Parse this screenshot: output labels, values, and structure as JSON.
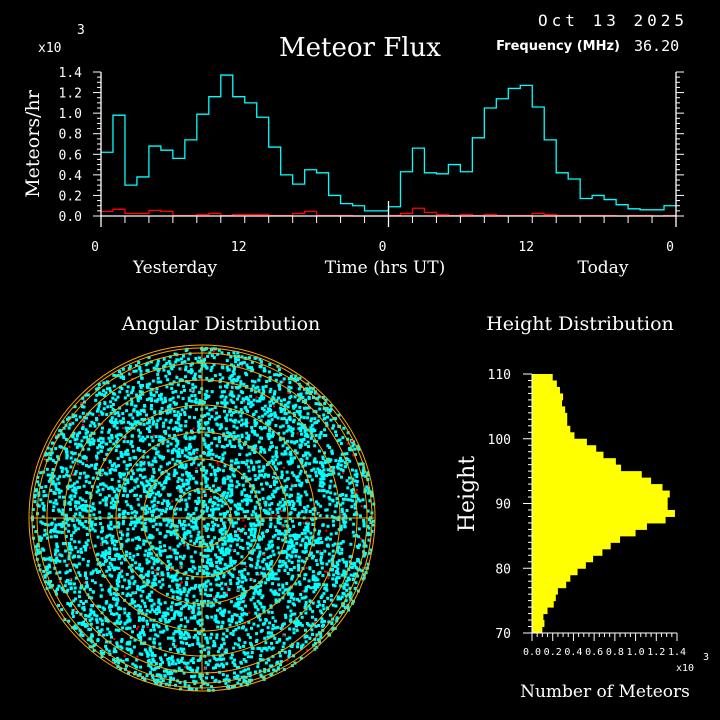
{
  "header": {
    "title": "Meteor Flux",
    "date": "Oct 13 2025",
    "frequency_label": "Frequency (MHz)",
    "frequency_value": "36.20"
  },
  "colors": {
    "background": "#000000",
    "total_series": "#00ffff",
    "secondary_series": "#ff0000",
    "axes": "#ffffff",
    "grid_rings": "#ffa500",
    "height_bars": "#ffff00"
  },
  "chart_data": [
    {
      "type": "line",
      "title": "Meteor Flux",
      "xlabel": "Time (hrs UT)",
      "ylabel": "Meteors/hr",
      "y_multiplier": "x10",
      "y_multiplier_exp": "3",
      "xlim": [
        0,
        48
      ],
      "ylim": [
        0,
        1.4
      ],
      "x_tick_labels": [
        "0",
        "12",
        "0",
        "12",
        "0"
      ],
      "x_tick_values": [
        0,
        12,
        24,
        36,
        48
      ],
      "y_tick_labels": [
        "0.0",
        "0.2",
        "0.4",
        "0.6",
        "0.8",
        "1.0",
        "1.2",
        "1.4"
      ],
      "day_labels": [
        "Yesterday",
        "Today"
      ],
      "step": true,
      "series": [
        {
          "color": "#00ffff",
          "values": [
            0.62,
            0.98,
            0.3,
            0.38,
            0.68,
            0.64,
            0.56,
            0.74,
            0.99,
            1.16,
            1.37,
            1.16,
            1.1,
            0.96,
            0.67,
            0.4,
            0.31,
            0.45,
            0.42,
            0.2,
            0.12,
            0.1,
            0.05,
            0.05,
            0.09,
            0.43,
            0.66,
            0.42,
            0.41,
            0.5,
            0.43,
            0.76,
            1.05,
            1.14,
            1.24,
            1.27,
            1.06,
            0.74,
            0.42,
            0.36,
            0.17,
            0.2,
            0.16,
            0.11,
            0.07,
            0.06,
            0.06,
            0.1
          ]
        },
        {
          "color": "#ff0000",
          "values": [
            0.045,
            0.065,
            0.025,
            0.025,
            0.055,
            0.045,
            0.005,
            0.005,
            0.015,
            0.025,
            0.005,
            0.015,
            0.015,
            0.015,
            0.005,
            0.005,
            0.025,
            0.045,
            0.005,
            0.005,
            0.005,
            0,
            0,
            0,
            0.005,
            0.025,
            0.075,
            0.035,
            0.015,
            0.005,
            0.015,
            0.005,
            0.015,
            0.005,
            0.005,
            0.005,
            0.025,
            0.015,
            0.005,
            0.005,
            0.005,
            0.005,
            0.005,
            0,
            0.005,
            0.005,
            0,
            0.005
          ]
        }
      ]
    },
    {
      "type": "scatter",
      "title": "Angular Distribution",
      "projection": "polar sky map",
      "point_colors": [
        "#00ffff",
        "#ff0000"
      ]
    },
    {
      "type": "bar",
      "orientation": "horizontal",
      "title": "Height Distribution",
      "xlabel": "Number of Meteors",
      "ylabel": "Height",
      "x_multiplier": "x10",
      "x_multiplier_exp": "3",
      "xlim": [
        0,
        1.4
      ],
      "ylim": [
        70,
        110
      ],
      "x_tick_labels": [
        "0.0",
        "0.2",
        "0.4",
        "0.6",
        "0.8",
        "1.0",
        "1.2",
        "1.4"
      ],
      "y_tick_labels": [
        "70",
        "80",
        "90",
        "100",
        "110"
      ],
      "bin_start": 70,
      "bin_width": 1,
      "values": [
        0.1,
        0.12,
        0.11,
        0.15,
        0.21,
        0.23,
        0.25,
        0.33,
        0.37,
        0.44,
        0.52,
        0.59,
        0.68,
        0.76,
        0.85,
        1.0,
        1.11,
        1.29,
        1.38,
        1.31,
        1.31,
        1.33,
        1.26,
        1.15,
        1.06,
        0.86,
        0.81,
        0.69,
        0.62,
        0.53,
        0.41,
        0.37,
        0.34,
        0.34,
        0.32,
        0.29,
        0.3,
        0.27,
        0.24,
        0.2
      ]
    }
  ]
}
